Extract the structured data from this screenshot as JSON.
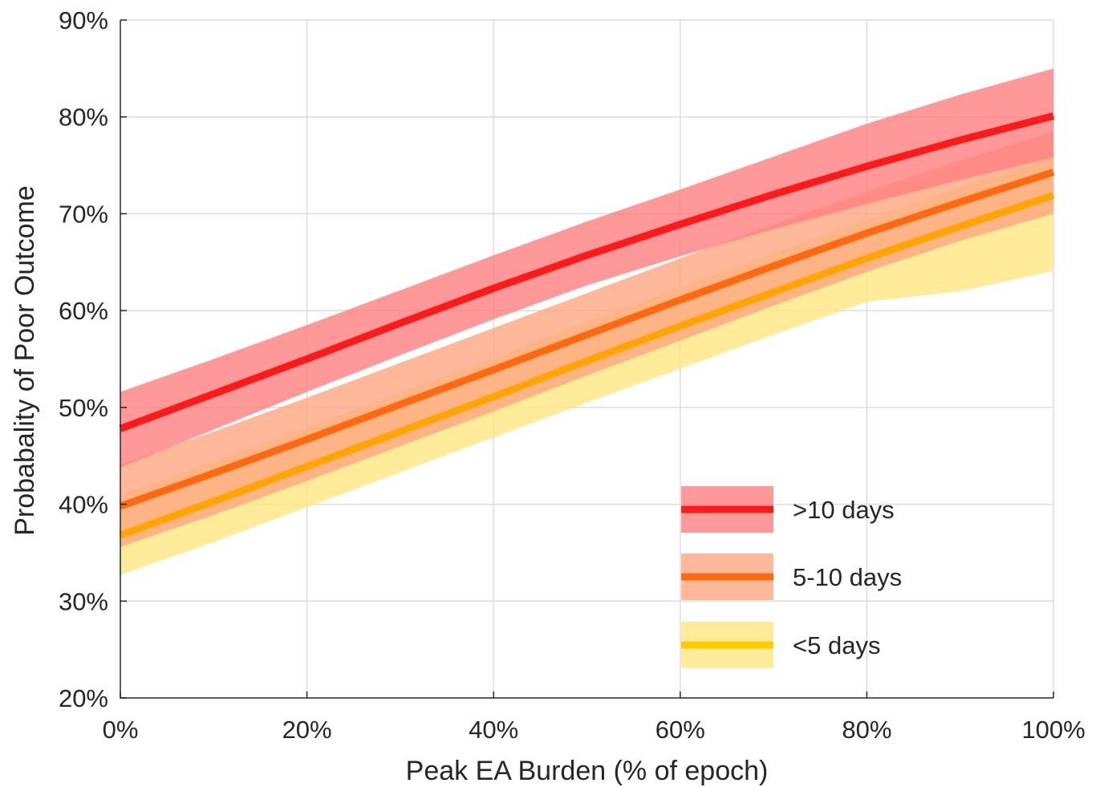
{
  "chart_data": {
    "type": "line",
    "title": "",
    "xlabel": "Peak EA Burden (% of epoch)",
    "ylabel": "Probabality of Poor Outcome",
    "xlim": [
      0,
      100
    ],
    "ylim": [
      20,
      90
    ],
    "x_ticks": [
      0,
      20,
      40,
      60,
      80,
      100
    ],
    "x_tick_labels": [
      "0%",
      "20%",
      "40%",
      "60%",
      "80%",
      "100%"
    ],
    "y_ticks": [
      20,
      30,
      40,
      50,
      60,
      70,
      80,
      90
    ],
    "y_tick_labels": [
      "20%",
      "30%",
      "40%",
      "50%",
      "60%",
      "70%",
      "80%",
      "90%"
    ],
    "grid": true,
    "legend_position": "bottom-right",
    "x": [
      0,
      10,
      20,
      30,
      40,
      50,
      60,
      70,
      80,
      90,
      100
    ],
    "series": [
      {
        "name": ">10 days",
        "line_color": "#ff1a1a",
        "band_color": "#ff8080",
        "values": [
          47.8,
          51.4,
          55.0,
          58.7,
          62.3,
          65.7,
          68.9,
          72.0,
          74.9,
          77.6,
          80.1
        ],
        "lower": [
          43.8,
          47.7,
          51.6,
          55.4,
          59.1,
          62.6,
          65.6,
          68.4,
          71.0,
          73.5,
          75.8
        ],
        "upper": [
          51.6,
          55.0,
          58.5,
          62.1,
          65.7,
          69.2,
          72.5,
          75.9,
          79.3,
          82.3,
          85.0
        ]
      },
      {
        "name": "5-10 days",
        "line_color": "#ff6600",
        "band_color": "#ffa680",
        "values": [
          39.8,
          43.2,
          46.7,
          50.3,
          53.9,
          57.5,
          61.1,
          64.6,
          68.0,
          71.2,
          74.3
        ],
        "lower": [
          35.6,
          38.9,
          42.4,
          46.0,
          49.6,
          53.3,
          56.9,
          60.5,
          64.0,
          67.2,
          70.0
        ],
        "upper": [
          44.1,
          47.5,
          51.0,
          54.6,
          58.2,
          61.8,
          65.4,
          68.9,
          72.3,
          75.5,
          78.5
        ]
      },
      {
        "name": "<5 days",
        "line_color": "#ffcc00",
        "band_color": "#ffe680",
        "values": [
          36.8,
          40.3,
          43.9,
          47.5,
          51.1,
          54.8,
          58.4,
          61.9,
          65.4,
          68.7,
          71.9
        ],
        "lower": [
          32.7,
          36.1,
          39.7,
          43.3,
          46.9,
          50.5,
          54.0,
          57.5,
          60.9,
          62.0,
          64.1
        ],
        "upper": [
          41.0,
          44.4,
          47.9,
          51.5,
          55.1,
          58.8,
          62.4,
          65.9,
          69.4,
          72.7,
          75.8
        ]
      }
    ]
  }
}
